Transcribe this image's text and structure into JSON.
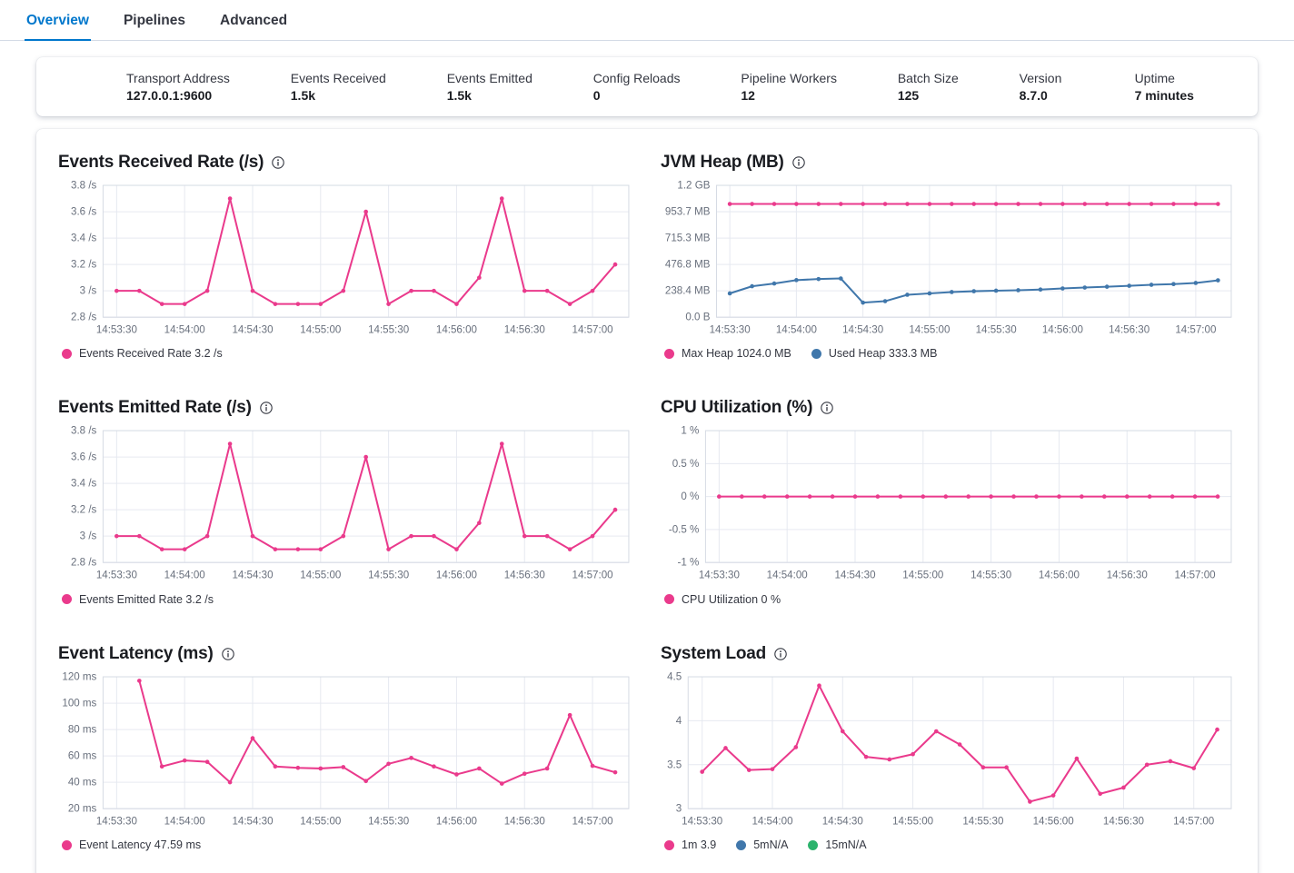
{
  "tabs": {
    "items": [
      {
        "label": "Overview",
        "active": true
      },
      {
        "label": "Pipelines",
        "active": false
      },
      {
        "label": "Advanced",
        "active": false
      }
    ]
  },
  "stats": {
    "items": [
      {
        "label": "Transport Address",
        "value": "127.0.0.1:9600"
      },
      {
        "label": "Events Received",
        "value": "1.5k"
      },
      {
        "label": "Events Emitted",
        "value": "1.5k"
      },
      {
        "label": "Config Reloads",
        "value": "0"
      },
      {
        "label": "Pipeline Workers",
        "value": "12"
      },
      {
        "label": "Batch Size",
        "value": "125"
      },
      {
        "label": "Version",
        "value": "8.7.0"
      },
      {
        "label": "Uptime",
        "value": "7 minutes"
      }
    ]
  },
  "colors": {
    "accent": "#0077cc",
    "pink": "#ea3a8c",
    "blue": "#4077ab",
    "green": "#2cb36c",
    "grid": "#e6e9f0",
    "plot_border": "#d6dbe4",
    "axis_text": "#69707d"
  },
  "chart_data": [
    {
      "type": "line",
      "title": "Events Received Rate (/s)",
      "x_domain": [
        -6,
        226
      ],
      "y_domain": [
        2.8,
        3.8
      ],
      "y_ticks": [
        {
          "v": 2.8,
          "label": "2.8 /s"
        },
        {
          "v": 3.0,
          "label": "3 /s"
        },
        {
          "v": 3.2,
          "label": "3.2 /s"
        },
        {
          "v": 3.4,
          "label": "3.4 /s"
        },
        {
          "v": 3.6,
          "label": "3.6 /s"
        },
        {
          "v": 3.8,
          "label": "3.8 /s"
        }
      ],
      "x_ticks": [
        {
          "t": 0,
          "label": "14:53:30"
        },
        {
          "t": 30,
          "label": "14:54:00"
        },
        {
          "t": 60,
          "label": "14:54:30"
        },
        {
          "t": 90,
          "label": "14:55:00"
        },
        {
          "t": 120,
          "label": "14:55:30"
        },
        {
          "t": 150,
          "label": "14:56:00"
        },
        {
          "t": 180,
          "label": "14:56:30"
        },
        {
          "t": 210,
          "label": "14:57:00"
        }
      ],
      "series": [
        {
          "name": "Events Received Rate",
          "color": "#ea3a8c",
          "x": [
            0,
            10,
            20,
            30,
            40,
            50,
            60,
            70,
            80,
            90,
            100,
            110,
            120,
            130,
            140,
            150,
            160,
            170,
            180,
            190,
            200,
            210,
            220
          ],
          "values": [
            3.0,
            3.0,
            2.9,
            2.9,
            3.0,
            3.7,
            3.0,
            2.9,
            2.9,
            2.9,
            3.0,
            3.6,
            2.9,
            3.0,
            3.0,
            2.9,
            3.1,
            3.7,
            3.0,
            3.0,
            2.9,
            3.0,
            3.2
          ]
        }
      ],
      "legend": [
        {
          "color": "#ea3a8c",
          "label": "Events Received Rate 3.2 /s"
        }
      ]
    },
    {
      "type": "line",
      "title": "JVM Heap (MB)",
      "x_domain": [
        -6,
        226
      ],
      "y_domain": [
        0,
        1192
      ],
      "y_ticks": [
        {
          "v": 0,
          "label": "0.0 B"
        },
        {
          "v": 238.4,
          "label": "238.4 MB"
        },
        {
          "v": 476.8,
          "label": "476.8 MB"
        },
        {
          "v": 715.3,
          "label": "715.3 MB"
        },
        {
          "v": 953.7,
          "label": "953.7 MB"
        },
        {
          "v": 1192,
          "label": "1.2 GB"
        }
      ],
      "x_ticks": [
        {
          "t": 0,
          "label": "14:53:30"
        },
        {
          "t": 30,
          "label": "14:54:00"
        },
        {
          "t": 60,
          "label": "14:54:30"
        },
        {
          "t": 90,
          "label": "14:55:00"
        },
        {
          "t": 120,
          "label": "14:55:30"
        },
        {
          "t": 150,
          "label": "14:56:00"
        },
        {
          "t": 180,
          "label": "14:56:30"
        },
        {
          "t": 210,
          "label": "14:57:00"
        }
      ],
      "series": [
        {
          "name": "Max Heap",
          "color": "#ea3a8c",
          "x": [
            0,
            10,
            20,
            30,
            40,
            50,
            60,
            70,
            80,
            90,
            100,
            110,
            120,
            130,
            140,
            150,
            160,
            170,
            180,
            190,
            200,
            210,
            220
          ],
          "values": [
            1024,
            1024,
            1024,
            1024,
            1024,
            1024,
            1024,
            1024,
            1024,
            1024,
            1024,
            1024,
            1024,
            1024,
            1024,
            1024,
            1024,
            1024,
            1024,
            1024,
            1024,
            1024,
            1024
          ]
        },
        {
          "name": "Used Heap",
          "color": "#4077ab",
          "x": [
            0,
            10,
            20,
            30,
            40,
            50,
            60,
            70,
            80,
            90,
            100,
            110,
            120,
            130,
            140,
            150,
            160,
            170,
            180,
            190,
            200,
            210,
            220
          ],
          "values": [
            215,
            280,
            305,
            335,
            345,
            350,
            132,
            145,
            203,
            215,
            228,
            235,
            240,
            244,
            250,
            260,
            268,
            276,
            284,
            293,
            300,
            310,
            333.3
          ]
        }
      ],
      "legend": [
        {
          "color": "#ea3a8c",
          "label": "Max Heap 1024.0 MB"
        },
        {
          "color": "#4077ab",
          "label": "Used Heap 333.3 MB"
        }
      ]
    },
    {
      "type": "line",
      "title": "Events Emitted Rate (/s)",
      "x_domain": [
        -6,
        226
      ],
      "y_domain": [
        2.8,
        3.8
      ],
      "y_ticks": [
        {
          "v": 2.8,
          "label": "2.8 /s"
        },
        {
          "v": 3.0,
          "label": "3 /s"
        },
        {
          "v": 3.2,
          "label": "3.2 /s"
        },
        {
          "v": 3.4,
          "label": "3.4 /s"
        },
        {
          "v": 3.6,
          "label": "3.6 /s"
        },
        {
          "v": 3.8,
          "label": "3.8 /s"
        }
      ],
      "x_ticks": [
        {
          "t": 0,
          "label": "14:53:30"
        },
        {
          "t": 30,
          "label": "14:54:00"
        },
        {
          "t": 60,
          "label": "14:54:30"
        },
        {
          "t": 90,
          "label": "14:55:00"
        },
        {
          "t": 120,
          "label": "14:55:30"
        },
        {
          "t": 150,
          "label": "14:56:00"
        },
        {
          "t": 180,
          "label": "14:56:30"
        },
        {
          "t": 210,
          "label": "14:57:00"
        }
      ],
      "series": [
        {
          "name": "Events Emitted Rate",
          "color": "#ea3a8c",
          "x": [
            0,
            10,
            20,
            30,
            40,
            50,
            60,
            70,
            80,
            90,
            100,
            110,
            120,
            130,
            140,
            150,
            160,
            170,
            180,
            190,
            200,
            210,
            220
          ],
          "values": [
            3.0,
            3.0,
            2.9,
            2.9,
            3.0,
            3.7,
            3.0,
            2.9,
            2.9,
            2.9,
            3.0,
            3.6,
            2.9,
            3.0,
            3.0,
            2.9,
            3.1,
            3.7,
            3.0,
            3.0,
            2.9,
            3.0,
            3.2
          ]
        }
      ],
      "legend": [
        {
          "color": "#ea3a8c",
          "label": "Events Emitted Rate 3.2 /s"
        }
      ]
    },
    {
      "type": "line",
      "title": "CPU Utilization (%)",
      "x_domain": [
        -6,
        226
      ],
      "y_domain": [
        -1,
        1
      ],
      "y_ticks": [
        {
          "v": -1,
          "label": "-1 %"
        },
        {
          "v": -0.5,
          "label": "-0.5 %"
        },
        {
          "v": 0,
          "label": "0 %"
        },
        {
          "v": 0.5,
          "label": "0.5 %"
        },
        {
          "v": 1,
          "label": "1 %"
        }
      ],
      "x_ticks": [
        {
          "t": 0,
          "label": "14:53:30"
        },
        {
          "t": 30,
          "label": "14:54:00"
        },
        {
          "t": 60,
          "label": "14:54:30"
        },
        {
          "t": 90,
          "label": "14:55:00"
        },
        {
          "t": 120,
          "label": "14:55:30"
        },
        {
          "t": 150,
          "label": "14:56:00"
        },
        {
          "t": 180,
          "label": "14:56:30"
        },
        {
          "t": 210,
          "label": "14:57:00"
        }
      ],
      "series": [
        {
          "name": "CPU Utilization",
          "color": "#ea3a8c",
          "x": [
            0,
            10,
            20,
            30,
            40,
            50,
            60,
            70,
            80,
            90,
            100,
            110,
            120,
            130,
            140,
            150,
            160,
            170,
            180,
            190,
            200,
            210,
            220
          ],
          "values": [
            0,
            0,
            0,
            0,
            0,
            0,
            0,
            0,
            0,
            0,
            0,
            0,
            0,
            0,
            0,
            0,
            0,
            0,
            0,
            0,
            0,
            0,
            0
          ]
        }
      ],
      "legend": [
        {
          "color": "#ea3a8c",
          "label": "CPU Utilization 0 %"
        }
      ]
    },
    {
      "type": "line",
      "title": "Event Latency (ms)",
      "x_domain": [
        -6,
        226
      ],
      "y_domain": [
        20,
        120
      ],
      "y_ticks": [
        {
          "v": 20,
          "label": "20 ms"
        },
        {
          "v": 40,
          "label": "40 ms"
        },
        {
          "v": 60,
          "label": "60 ms"
        },
        {
          "v": 80,
          "label": "80 ms"
        },
        {
          "v": 100,
          "label": "100 ms"
        },
        {
          "v": 120,
          "label": "120 ms"
        }
      ],
      "x_ticks": [
        {
          "t": 0,
          "label": "14:53:30"
        },
        {
          "t": 30,
          "label": "14:54:00"
        },
        {
          "t": 60,
          "label": "14:54:30"
        },
        {
          "t": 90,
          "label": "14:55:00"
        },
        {
          "t": 120,
          "label": "14:55:30"
        },
        {
          "t": 150,
          "label": "14:56:00"
        },
        {
          "t": 180,
          "label": "14:56:30"
        },
        {
          "t": 210,
          "label": "14:57:00"
        }
      ],
      "series": [
        {
          "name": "Event Latency",
          "color": "#ea3a8c",
          "x": [
            10,
            20,
            30,
            40,
            50,
            60,
            70,
            80,
            90,
            100,
            110,
            120,
            130,
            140,
            150,
            160,
            170,
            180,
            190,
            200,
            210,
            220
          ],
          "values": [
            117,
            52,
            56.5,
            55.5,
            40,
            73.5,
            52,
            51,
            50.5,
            51.5,
            41,
            54,
            58.5,
            52,
            46,
            50.5,
            39,
            46.5,
            50.5,
            91,
            52.5,
            47.59
          ]
        }
      ],
      "legend": [
        {
          "color": "#ea3a8c",
          "label": "Event Latency 47.59 ms"
        }
      ]
    },
    {
      "type": "line",
      "title": "System Load",
      "x_domain": [
        -6,
        226
      ],
      "y_domain": [
        3,
        4.5
      ],
      "y_ticks": [
        {
          "v": 3,
          "label": "3"
        },
        {
          "v": 3.5,
          "label": "3.5"
        },
        {
          "v": 4,
          "label": "4"
        },
        {
          "v": 4.5,
          "label": "4.5"
        }
      ],
      "x_ticks": [
        {
          "t": 0,
          "label": "14:53:30"
        },
        {
          "t": 30,
          "label": "14:54:00"
        },
        {
          "t": 60,
          "label": "14:54:30"
        },
        {
          "t": 90,
          "label": "14:55:00"
        },
        {
          "t": 120,
          "label": "14:55:30"
        },
        {
          "t": 150,
          "label": "14:56:00"
        },
        {
          "t": 180,
          "label": "14:56:30"
        },
        {
          "t": 210,
          "label": "14:57:00"
        }
      ],
      "series": [
        {
          "name": "1m",
          "color": "#ea3a8c",
          "x": [
            0,
            10,
            20,
            30,
            40,
            50,
            60,
            70,
            80,
            90,
            100,
            110,
            120,
            130,
            140,
            150,
            160,
            170,
            180,
            190,
            200,
            210,
            220
          ],
          "values": [
            3.42,
            3.69,
            3.44,
            3.45,
            3.7,
            4.4,
            3.88,
            3.59,
            3.56,
            3.62,
            3.88,
            3.73,
            3.47,
            3.47,
            3.08,
            3.15,
            3.57,
            3.17,
            3.24,
            3.5,
            3.54,
            3.46,
            3.9
          ]
        },
        {
          "name": "5m",
          "color": "#4077ab",
          "x": [],
          "values": []
        },
        {
          "name": "15m",
          "color": "#2cb36c",
          "x": [],
          "values": []
        }
      ],
      "legend": [
        {
          "color": "#ea3a8c",
          "label": "1m 3.9"
        },
        {
          "color": "#4077ab",
          "label": "5mN/A"
        },
        {
          "color": "#2cb36c",
          "label": "15mN/A"
        }
      ]
    }
  ]
}
